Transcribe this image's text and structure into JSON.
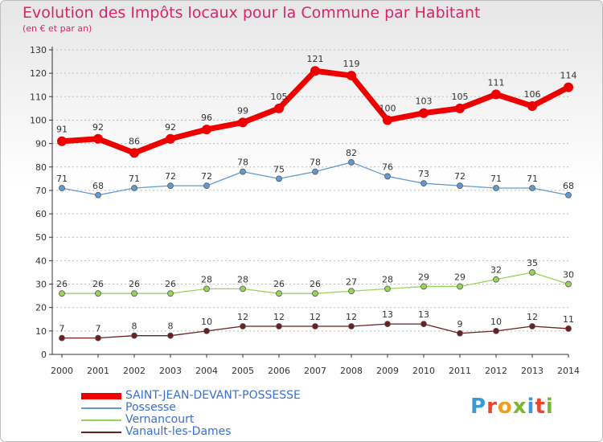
{
  "title": "Evolution des Impôts locaux pour la Commune par Habitant",
  "subtitle": "(en € et par an)",
  "brand": {
    "text": "Proxiti",
    "colors": [
      "#3a9ad9",
      "#e8462f",
      "#f0a020",
      "#7ab833",
      "#3a9ad9",
      "#e8462f",
      "#7ab833"
    ]
  },
  "colors": {
    "title": "#d5266c",
    "axis": "#333333",
    "grid": "#bbbbbb",
    "legend_text": "#3a6fd0"
  },
  "chart_data": {
    "type": "line",
    "x": [
      "2000",
      "2001",
      "2002",
      "2003",
      "2004",
      "2005",
      "2006",
      "2007",
      "2008",
      "2009",
      "2010",
      "2011",
      "2012",
      "2013",
      "2014"
    ],
    "ylim": [
      0,
      130
    ],
    "yticks": [
      0,
      10,
      20,
      30,
      40,
      50,
      60,
      70,
      80,
      90,
      100,
      110,
      120,
      130
    ],
    "grid": "horizontal dashed",
    "legend_position": "bottom-left",
    "series": [
      {
        "name": "SAINT-JEAN-DEVANT-POSSESSE",
        "color": "#ee0000",
        "values": [
          91,
          92,
          86,
          92,
          96,
          99,
          105,
          121,
          119,
          100,
          103,
          105,
          111,
          106,
          114
        ]
      },
      {
        "name": "Possesse",
        "color": "#5f9bd1",
        "values": [
          71,
          68,
          71,
          72,
          72,
          78,
          75,
          78,
          82,
          76,
          73,
          72,
          71,
          71,
          68
        ]
      },
      {
        "name": "Vernancourt",
        "color": "#98d45a",
        "values": [
          26,
          26,
          26,
          26,
          28,
          28,
          26,
          26,
          27,
          28,
          29,
          29,
          32,
          35,
          30
        ]
      },
      {
        "name": "Vanault-les-Dames",
        "color": "#6b1f1f",
        "values": [
          7,
          7,
          8,
          8,
          10,
          12,
          12,
          12,
          12,
          13,
          13,
          9,
          10,
          12,
          11
        ]
      }
    ]
  }
}
